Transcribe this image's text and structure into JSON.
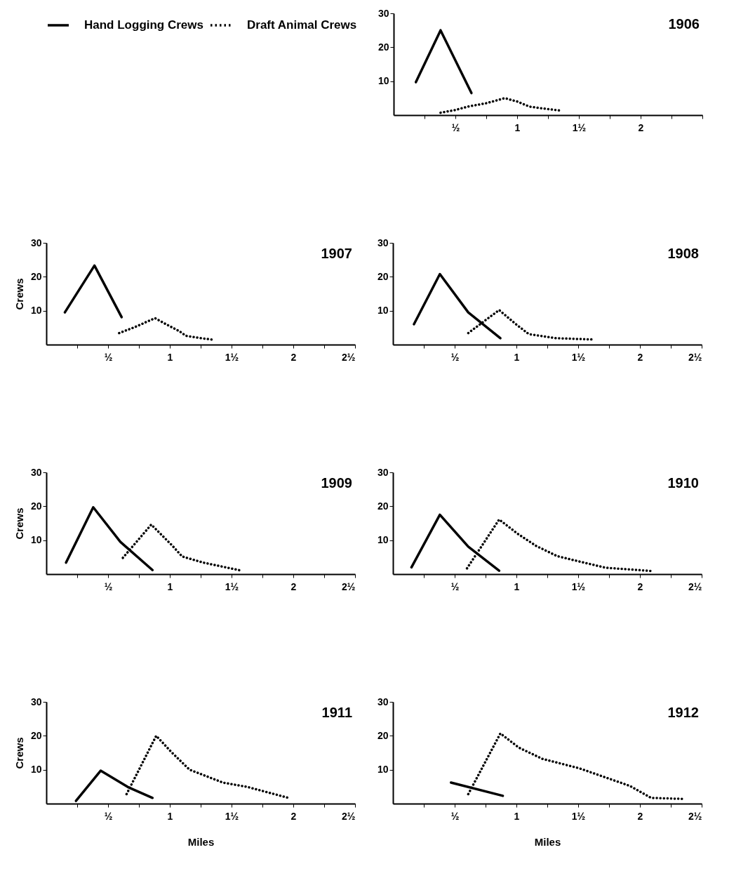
{
  "chart_data": [
    {
      "type": "line",
      "title": "1906",
      "xlim": [
        0,
        2.5
      ],
      "ylim": [
        0,
        30
      ],
      "yticks": [
        10,
        20,
        30
      ],
      "legend": "left",
      "xticks": [
        {
          "value": 0.25,
          "label": null
        },
        {
          "value": 0.5,
          "label": "½"
        },
        {
          "value": 0.75,
          "label": null
        },
        1,
        {
          "value": 1.25,
          "label": null
        },
        {
          "value": 1.5,
          "label": "1½"
        },
        {
          "value": 1.75,
          "label": null
        },
        2,
        {
          "value": 2.25,
          "label": null
        },
        {
          "value": 2.5,
          "label": null
        }
      ],
      "series": [
        {
          "name": "Hand Logging Crews",
          "color": "#000000",
          "line_style": "solid",
          "x": [
            0.18,
            0.38,
            0.63
          ],
          "values": [
            9.7,
            25,
            6.5
          ]
        },
        {
          "name": "Draft Animal Crews",
          "color": "#000000",
          "line_style": "dotted",
          "x": [
            0.38,
            0.5,
            0.6,
            0.75,
            0.9,
            1.0,
            1.1,
            1.2,
            1.36
          ],
          "values": [
            0.7,
            1.5,
            2.5,
            3.5,
            5,
            4,
            2.5,
            2,
            1.3
          ]
        }
      ]
    },
    {
      "type": "line",
      "title": "1907",
      "ylabel": "Crews",
      "xlim": [
        0,
        2.5
      ],
      "ylim": [
        0,
        30
      ],
      "yticks": [
        10,
        20,
        30
      ],
      "xticks": [
        {
          "value": 0.25,
          "label": null
        },
        {
          "value": 0.5,
          "label": "½"
        },
        {
          "value": 0.75,
          "label": null
        },
        1,
        {
          "value": 1.25,
          "label": null
        },
        {
          "value": 1.5,
          "label": "1½"
        },
        {
          "value": 1.75,
          "label": null
        },
        2,
        {
          "value": 2.25,
          "label": null
        },
        {
          "value": 2.5,
          "label": "2½"
        }
      ],
      "series": [
        {
          "color": "#000000",
          "line_style": "solid",
          "x": [
            0.15,
            0.39,
            0.61
          ],
          "values": [
            9.5,
            23.3,
            8.1
          ]
        },
        {
          "color": "#000000",
          "line_style": "dotted",
          "x": [
            0.59,
            0.72,
            0.88,
            0.97,
            1.08,
            1.13,
            1.25,
            1.36
          ],
          "values": [
            3.4,
            5.2,
            7.8,
            6,
            3.9,
            2.6,
            1.9,
            1.4
          ]
        }
      ]
    },
    {
      "type": "line",
      "title": "1908",
      "xlim": [
        0,
        2.5
      ],
      "ylim": [
        0,
        30
      ],
      "yticks": [
        10,
        20,
        30
      ],
      "xticks": [
        {
          "value": 0.25,
          "label": null
        },
        {
          "value": 0.5,
          "label": "½"
        },
        {
          "value": 0.75,
          "label": null
        },
        1,
        {
          "value": 1.25,
          "label": null
        },
        {
          "value": 1.5,
          "label": "1½"
        },
        {
          "value": 1.75,
          "label": null
        },
        2,
        {
          "value": 2.25,
          "label": null
        },
        {
          "value": 2.5,
          "label": "2½"
        }
      ],
      "series": [
        {
          "color": "#000000",
          "line_style": "solid",
          "x": [
            0.17,
            0.38,
            0.61,
            0.87
          ],
          "values": [
            6,
            20.8,
            9.5,
            1.9
          ]
        },
        {
          "color": "#000000",
          "line_style": "dotted",
          "x": [
            0.61,
            0.86,
            1.0,
            1.1,
            1.32,
            1.63
          ],
          "values": [
            3.4,
            10.2,
            5.9,
            3.1,
            1.9,
            1.5
          ]
        }
      ]
    },
    {
      "type": "line",
      "title": "1909",
      "ylabel": "Crews",
      "xlim": [
        0,
        2.5
      ],
      "ylim": [
        0,
        30
      ],
      "yticks": [
        10,
        20,
        30
      ],
      "xticks": [
        {
          "value": 0.25,
          "label": null
        },
        {
          "value": 0.5,
          "label": "½"
        },
        {
          "value": 0.75,
          "label": null
        },
        1,
        {
          "value": 1.25,
          "label": null
        },
        {
          "value": 1.5,
          "label": "1½"
        },
        {
          "value": 1.75,
          "label": null
        },
        2,
        {
          "value": 2.25,
          "label": null
        },
        {
          "value": 2.5,
          "label": "2½"
        }
      ],
      "series": [
        {
          "color": "#000000",
          "line_style": "solid",
          "x": [
            0.16,
            0.38,
            0.6,
            0.86
          ],
          "values": [
            3.4,
            19.7,
            9.5,
            1.2
          ]
        },
        {
          "color": "#000000",
          "line_style": "dotted",
          "x": [
            0.62,
            0.85,
            1.02,
            1.1,
            1.27,
            1.57
          ],
          "values": [
            4.8,
            14.6,
            8.4,
            5.2,
            3.4,
            1.1
          ]
        }
      ]
    },
    {
      "type": "line",
      "title": "1910",
      "xlim": [
        0,
        2.5
      ],
      "ylim": [
        0,
        30
      ],
      "yticks": [
        10,
        20,
        30
      ],
      "xticks": [
        {
          "value": 0.25,
          "label": null
        },
        {
          "value": 0.5,
          "label": "½"
        },
        {
          "value": 0.75,
          "label": null
        },
        1,
        {
          "value": 1.25,
          "label": null
        },
        {
          "value": 1.5,
          "label": "1½"
        },
        {
          "value": 1.75,
          "label": null
        },
        2,
        {
          "value": 2.25,
          "label": null
        },
        {
          "value": 2.5,
          "label": "2½"
        }
      ],
      "series": [
        {
          "color": "#000000",
          "line_style": "solid",
          "x": [
            0.15,
            0.38,
            0.61,
            0.86
          ],
          "values": [
            2,
            17.5,
            8.1,
            1
          ]
        },
        {
          "color": "#000000",
          "line_style": "dotted",
          "x": [
            0.6,
            0.86,
            1.01,
            1.16,
            1.33,
            1.5,
            1.72,
            2.1
          ],
          "values": [
            1.7,
            16.1,
            11.9,
            8.3,
            5.3,
            3.8,
            1.9,
            0.9
          ]
        }
      ]
    },
    {
      "type": "line",
      "title": "1911",
      "ylabel": "Crews",
      "xlabel": "Miles",
      "xlim": [
        0,
        2.5
      ],
      "ylim": [
        0,
        30
      ],
      "yticks": [
        10,
        20,
        30
      ],
      "xticks": [
        {
          "value": 0.25,
          "label": null
        },
        {
          "value": 0.5,
          "label": "½"
        },
        {
          "value": 0.75,
          "label": null
        },
        1,
        {
          "value": 1.25,
          "label": null
        },
        {
          "value": 1.5,
          "label": "1½"
        },
        {
          "value": 1.75,
          "label": null
        },
        2,
        {
          "value": 2.25,
          "label": null
        },
        {
          "value": 2.5,
          "label": "2½"
        }
      ],
      "series": [
        {
          "color": "#000000",
          "line_style": "solid",
          "x": [
            0.24,
            0.44,
            0.66,
            0.86
          ],
          "values": [
            0.8,
            9.7,
            4.9,
            1.7
          ]
        },
        {
          "color": "#000000",
          "line_style": "dotted",
          "x": [
            0.65,
            0.89,
            1.01,
            1.16,
            1.43,
            1.63,
            1.96
          ],
          "values": [
            2.8,
            20,
            15.3,
            10,
            6.2,
            4.9,
            1.7
          ]
        }
      ]
    },
    {
      "type": "line",
      "title": "1912",
      "xlabel": "Miles",
      "xlim": [
        0,
        2.5
      ],
      "ylim": [
        0,
        30
      ],
      "yticks": [
        10,
        20,
        30
      ],
      "xticks": [
        {
          "value": 0.25,
          "label": null
        },
        {
          "value": 0.5,
          "label": "½"
        },
        {
          "value": 0.75,
          "label": null
        },
        1,
        {
          "value": 1.25,
          "label": null
        },
        {
          "value": 1.5,
          "label": "1½"
        },
        {
          "value": 1.75,
          "label": null
        },
        2,
        {
          "value": 2.25,
          "label": null
        },
        {
          "value": 2.5,
          "label": "2½"
        }
      ],
      "series": [
        {
          "color": "#000000",
          "line_style": "solid",
          "x": [
            0.47,
            0.89
          ],
          "values": [
            6.2,
            2.3
          ]
        },
        {
          "color": "#000000",
          "line_style": "dotted",
          "x": [
            0.61,
            0.87,
            1.02,
            1.21,
            1.51,
            1.92,
            2.09,
            2.34
          ],
          "values": [
            2.8,
            20.7,
            16.5,
            13.2,
            10.4,
            5.2,
            1.7,
            1.4
          ]
        }
      ]
    }
  ]
}
